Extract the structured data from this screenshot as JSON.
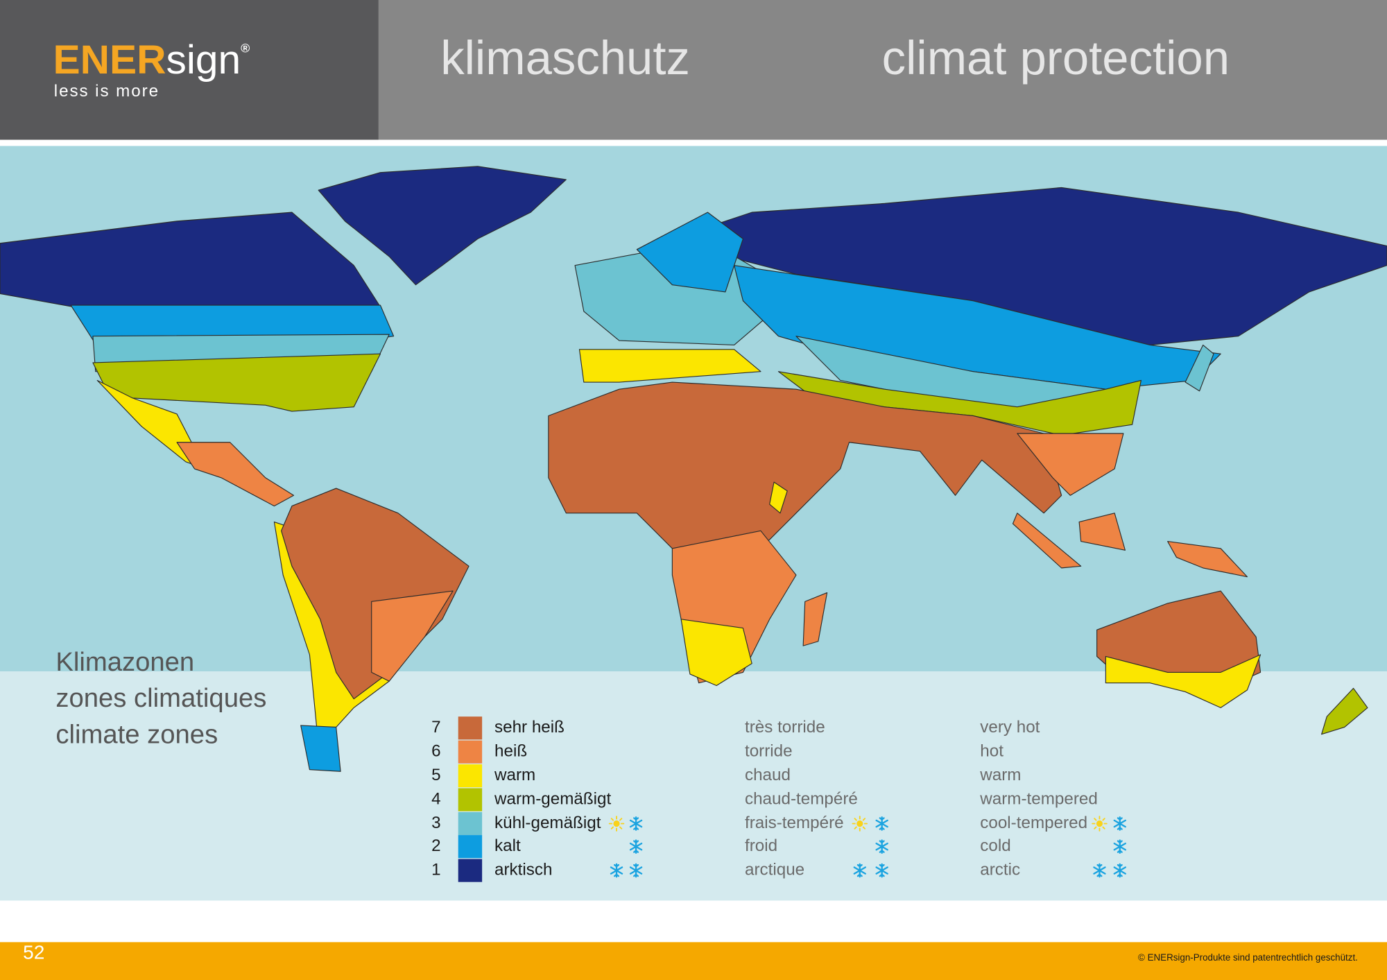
{
  "header": {
    "logo": {
      "brand_highlight": "ENER",
      "brand": "sign",
      "registered": "®",
      "tagline": "less is more"
    },
    "title_1": "klimaschutz",
    "title_2": "climat protection"
  },
  "map": {
    "caption": [
      "Klimazonen",
      "zones climatiques",
      "climate zones"
    ],
    "legend": [
      {
        "zone": 7,
        "de": "sehr heiß",
        "fr": "très torride",
        "en": "very hot"
      },
      {
        "zone": 6,
        "de": "heiß",
        "fr": "torride",
        "en": "hot"
      },
      {
        "zone": 5,
        "de": "warm",
        "fr": "chaud",
        "en": "warm"
      },
      {
        "zone": 4,
        "de": "warm-gemäßigt",
        "fr": "chaud-tempéré",
        "en": "warm-tempered"
      },
      {
        "zone": 3,
        "de": "kühl-gemäßigt",
        "fr": "frais-tempéré",
        "en": "cool-tempered"
      },
      {
        "zone": 2,
        "de": "kalt",
        "fr": "froid",
        "en": "cold"
      },
      {
        "zone": 1,
        "de": "arktisch",
        "fr": "arctique",
        "en": "arctic"
      }
    ]
  },
  "footer": {
    "page": 52,
    "copyright": "© ENERsign-Produkte sind patentrechtlich geschützt."
  }
}
